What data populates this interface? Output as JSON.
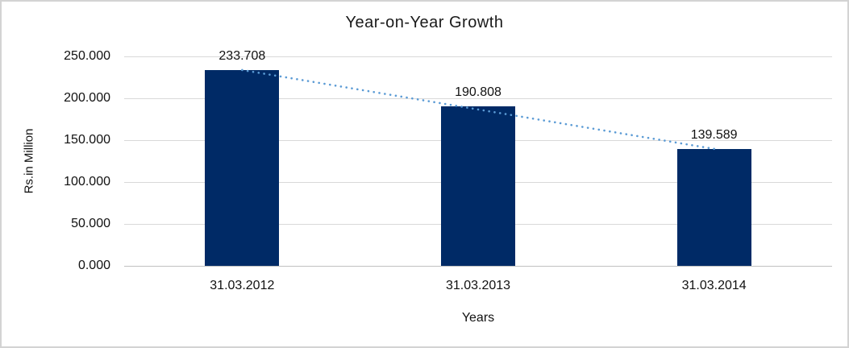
{
  "chart_data": {
    "type": "bar",
    "title": "Year-on-Year Growth",
    "xlabel": "Years",
    "ylabel": "Rs.in Million",
    "categories": [
      "31.03.2012",
      "31.03.2013",
      "31.03.2014"
    ],
    "values": [
      233.708,
      190.808,
      139.589
    ],
    "data_labels": [
      "233.708",
      "190.808",
      "139.589"
    ],
    "y_ticks": [
      "250.000",
      "200.000",
      "150.000",
      "100.000",
      "50.000",
      "0.000"
    ],
    "ylim": [
      0,
      250
    ],
    "grid": true,
    "legend": "none",
    "trendline": {
      "type": "linear",
      "style": "dotted",
      "color": "#5b9bd5"
    },
    "colors": {
      "bar": "#002a66",
      "gridline": "#d9d9d9",
      "axis_line": "#c0c0c0",
      "frame_border": "#d3d3d3",
      "text": "#111111"
    }
  }
}
